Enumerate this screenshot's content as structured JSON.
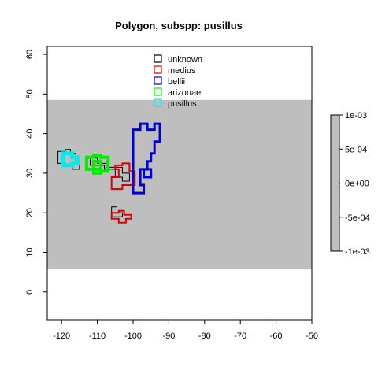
{
  "chart_data": {
    "type": "map",
    "title": "Polygon, subspp: pusillus",
    "xlabel": "",
    "ylabel": "",
    "xlim": [
      -124,
      -50
    ],
    "ylim": [
      -7,
      62
    ],
    "xticks": [
      -120,
      -110,
      -100,
      -90,
      -80,
      -70,
      -60,
      -50
    ],
    "yticks": [
      0,
      10,
      20,
      30,
      40,
      50,
      60
    ],
    "grid": false,
    "background_band": {
      "ymin": 5.7,
      "ymax": 48.5,
      "color": "#bebebe"
    },
    "legend": {
      "position": "top-center",
      "entries": [
        {
          "name": "unknown",
          "color": "#000000"
        },
        {
          "name": "medius",
          "color": "#dd0000"
        },
        {
          "name": "bellii",
          "color": "#0000dd"
        },
        {
          "name": "arizonae",
          "color": "#00ee00"
        },
        {
          "name": "pusillus",
          "color": "#00eeee"
        }
      ]
    },
    "colorbar": {
      "position": "right",
      "ticks": [
        "1e-03",
        "5e-04",
        "0e+00",
        "-5e-04",
        "-1e-03"
      ],
      "color": "#bebebe"
    },
    "series": [
      {
        "name": "unknown",
        "color": "#000000",
        "width": 1,
        "polygons": [
          [
            [
              -121,
              32.5
            ],
            [
              -121,
              35.5
            ],
            [
              -119,
              35.5
            ],
            [
              -119,
              36
            ],
            [
              -117.5,
              36
            ],
            [
              -117.5,
              35
            ],
            [
              -116,
              35
            ],
            [
              -116,
              33
            ],
            [
              -115,
              33
            ],
            [
              -115,
              31
            ],
            [
              -117,
              31
            ],
            [
              -117,
              32
            ],
            [
              -119,
              32
            ],
            [
              -119,
              32.5
            ]
          ],
          [
            [
              -112,
              32
            ],
            [
              -112,
              34
            ],
            [
              -110,
              34
            ],
            [
              -110,
              32.5
            ],
            [
              -107,
              32.5
            ],
            [
              -107,
              31.5
            ],
            [
              -103,
              31.5
            ],
            [
              -103,
              30
            ],
            [
              -101,
              30
            ],
            [
              -101,
              28
            ],
            [
              -103,
              28
            ],
            [
              -103,
              29
            ],
            [
              -105,
              29
            ],
            [
              -105,
              31
            ],
            [
              -108,
              31
            ],
            [
              -108,
              32
            ]
          ],
          [
            [
              -106,
              19
            ],
            [
              -106,
              21.5
            ],
            [
              -104.5,
              21.5
            ],
            [
              -104.5,
              20
            ],
            [
              -103,
              20
            ],
            [
              -103,
              19
            ]
          ]
        ]
      },
      {
        "name": "medius",
        "color": "#dd0000",
        "width": 2,
        "polygons": [
          [
            [
              -106,
              26
            ],
            [
              -106,
              29
            ],
            [
              -104,
              29
            ],
            [
              -104,
              31
            ],
            [
              -105,
              31
            ],
            [
              -105,
              32
            ],
            [
              -103,
              32
            ],
            [
              -103,
              32.5
            ],
            [
              -101,
              32.5
            ],
            [
              -101,
              30.5
            ],
            [
              -99.5,
              30.5
            ],
            [
              -99.5,
              27
            ],
            [
              -103,
              27
            ],
            [
              -103,
              26
            ]
          ],
          [
            [
              -106,
              18.5
            ],
            [
              -106,
              20
            ],
            [
              -104,
              20
            ],
            [
              -104,
              20.5
            ],
            [
              -102.5,
              20.5
            ],
            [
              -102.5,
              19.5
            ],
            [
              -100.5,
              19.5
            ],
            [
              -100.5,
              18.5
            ],
            [
              -102,
              18.5
            ],
            [
              -102,
              17.5
            ],
            [
              -104,
              17.5
            ],
            [
              -104,
              18.5
            ]
          ]
        ]
      },
      {
        "name": "bellii",
        "color": "#0000dd",
        "width": 3,
        "polygons": [
          [
            [
              -100,
              25
            ],
            [
              -100,
              41
            ],
            [
              -98,
              41
            ],
            [
              -98,
              42.5
            ],
            [
              -96,
              42.5
            ],
            [
              -96,
              41
            ],
            [
              -94,
              41
            ],
            [
              -94,
              42.5
            ],
            [
              -92.5,
              42.5
            ],
            [
              -92.5,
              38
            ],
            [
              -94,
              38
            ],
            [
              -94,
              35
            ],
            [
              -95,
              35
            ],
            [
              -95,
              33
            ],
            [
              -96,
              33
            ],
            [
              -96,
              31
            ],
            [
              -98,
              31
            ],
            [
              -98,
              27
            ],
            [
              -97,
              27
            ],
            [
              -97,
              25
            ]
          ],
          [
            [
              -97,
              29
            ],
            [
              -97,
              31
            ],
            [
              -95,
              31
            ],
            [
              -95,
              29
            ]
          ]
        ]
      },
      {
        "name": "arizonae",
        "color": "#00ee00",
        "width": 4,
        "polygons": [
          [
            [
              -113,
              31
            ],
            [
              -113,
              34
            ],
            [
              -111,
              34
            ],
            [
              -111,
              34.5
            ],
            [
              -109,
              34.5
            ],
            [
              -109,
              34
            ],
            [
              -107,
              34
            ],
            [
              -107,
              30.5
            ],
            [
              -109,
              30.5
            ],
            [
              -109,
              30
            ],
            [
              -111,
              30
            ],
            [
              -111,
              31
            ]
          ],
          [
            [
              -111,
              31
            ],
            [
              -111,
              33
            ],
            [
              -109,
              33
            ],
            [
              -109,
              31
            ]
          ]
        ]
      },
      {
        "name": "pusillus",
        "color": "#00eeee",
        "width": 5,
        "polygons": [
          [
            [
              -119.5,
              32
            ],
            [
              -119.5,
              35
            ],
            [
              -117,
              35
            ],
            [
              -117,
              34
            ],
            [
              -115.5,
              34
            ],
            [
              -115.5,
              32.5
            ],
            [
              -117,
              32.5
            ],
            [
              -117,
              32
            ]
          ]
        ]
      }
    ]
  }
}
